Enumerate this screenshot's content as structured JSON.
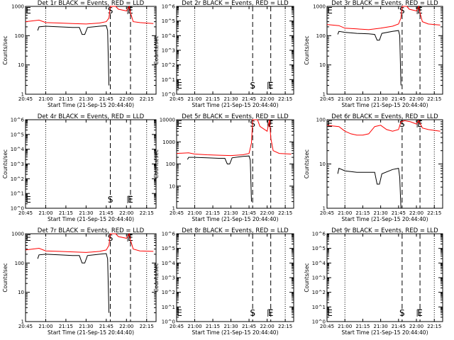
{
  "chart_data": [
    {
      "type": "line",
      "title": "Det 1r BLACK = Events, RED = LLD",
      "xlabel": "Start Time (21-Sep-15 20:44:40)",
      "ylabel": "Counts/sec",
      "yscale": "log",
      "ylim": [
        1,
        1000
      ],
      "xlim": [
        "20:45",
        "22:22"
      ],
      "xticks": [
        "20:45",
        "21:00",
        "21:15",
        "21:30",
        "21:45",
        "22:00",
        "22:15"
      ],
      "yticks": [
        "1",
        "10",
        "100",
        "1000"
      ],
      "markers": [
        "S",
        "E"
      ],
      "has_data": true,
      "series": [
        {
          "color": "#ff0000",
          "x": [
            "20:45",
            "20:55",
            "21:00",
            "21:10",
            "21:20",
            "21:30",
            "21:40",
            "21:45",
            "21:47",
            "21:48",
            "21:52",
            "21:54",
            "22:00",
            "22:02",
            "22:03",
            "22:05",
            "22:10",
            "22:20"
          ],
          "y": [
            300,
            340,
            280,
            270,
            260,
            250,
            270,
            300,
            400,
            1000,
            1000,
            800,
            700,
            1000,
            600,
            300,
            280,
            260
          ]
        },
        {
          "color": "#000000",
          "x": [
            "20:54",
            "20:55",
            "21:00",
            "21:10",
            "21:20",
            "21:25",
            "21:27",
            "21:29",
            "21:31",
            "21:40",
            "21:45",
            "21:46",
            "21:47"
          ],
          "y": [
            150,
            200,
            210,
            200,
            190,
            190,
            110,
            110,
            190,
            210,
            220,
            150,
            2
          ]
        }
      ]
    },
    {
      "type": "line",
      "title": "Det 2r BLACK = Events, RED = LLD",
      "xlabel": "Start Time (21-Sep-15 20:44:40)",
      "ylabel": "Counts/sec",
      "yscale": "log",
      "ylim": [
        1,
        1000000
      ],
      "xlim": [
        "20:45",
        "22:22"
      ],
      "xticks": [
        "20:45",
        "21:00",
        "21:15",
        "21:30",
        "21:45",
        "22:00",
        "22:15"
      ],
      "yticks": [
        "10^0",
        "10^1",
        "10^2",
        "10^3",
        "10^4",
        "10^5",
        "10^6"
      ],
      "markers": [
        "S",
        "E"
      ],
      "has_data": false,
      "series": []
    },
    {
      "type": "line",
      "title": "Det 3r BLACK = Events, RED = LLD",
      "xlabel": "Start Time (21-Sep-15 20:44:40)",
      "ylabel": "Counts/sec",
      "yscale": "log",
      "ylim": [
        1,
        1000
      ],
      "xlim": [
        "20:45",
        "22:22"
      ],
      "xticks": [
        "20:45",
        "21:00",
        "21:15",
        "21:30",
        "21:45",
        "22:00",
        "22:15"
      ],
      "yticks": [
        "1",
        "10",
        "100",
        "1000"
      ],
      "markers": [
        "S",
        "E"
      ],
      "has_data": true,
      "series": [
        {
          "color": "#ff0000",
          "x": [
            "20:45",
            "20:55",
            "21:00",
            "21:10",
            "21:20",
            "21:30",
            "21:40",
            "21:45",
            "21:47",
            "21:48",
            "21:52",
            "21:54",
            "22:00",
            "22:02",
            "22:03",
            "22:05",
            "22:10",
            "22:20"
          ],
          "y": [
            240,
            220,
            180,
            170,
            160,
            180,
            210,
            250,
            400,
            1000,
            1000,
            800,
            700,
            1000,
            600,
            300,
            250,
            230
          ]
        },
        {
          "color": "#000000",
          "x": [
            "20:54",
            "20:55",
            "21:00",
            "21:10",
            "21:20",
            "21:25",
            "21:27",
            "21:29",
            "21:31",
            "21:40",
            "21:45",
            "21:46",
            "21:47"
          ],
          "y": [
            110,
            140,
            130,
            120,
            115,
            110,
            70,
            70,
            120,
            140,
            150,
            100,
            2
          ]
        }
      ]
    },
    {
      "type": "line",
      "title": "Det 4r BLACK = Events, RED = LLD",
      "xlabel": "Start Time (21-Sep-15 20:44:40)",
      "ylabel": "Counts/sec",
      "yscale": "log",
      "ylim": [
        1,
        1000000
      ],
      "xlim": [
        "20:45",
        "22:22"
      ],
      "xticks": [
        "20:45",
        "21:00",
        "21:15",
        "21:30",
        "21:45",
        "22:00",
        "22:15"
      ],
      "yticks": [
        "10^0",
        "10^1",
        "10^2",
        "10^3",
        "10^4",
        "10^5",
        "10^6"
      ],
      "markers": [
        "S",
        "E"
      ],
      "has_data": false,
      "series": []
    },
    {
      "type": "line",
      "title": "Det 5r BLACK = Events, RED = LLD",
      "xlabel": "Start Time (21-Sep-15 20:44:40)",
      "ylabel": "Counts/sec",
      "yscale": "log",
      "ylim": [
        1,
        10000
      ],
      "xlim": [
        "20:45",
        "22:22"
      ],
      "xticks": [
        "20:45",
        "21:00",
        "21:15",
        "21:30",
        "21:45",
        "22:00",
        "22:15"
      ],
      "yticks": [
        "1",
        "10",
        "100",
        "1000",
        "10000"
      ],
      "markers": [
        "S",
        "E"
      ],
      "has_data": true,
      "series": [
        {
          "color": "#ff0000",
          "x": [
            "20:45",
            "20:55",
            "21:00",
            "21:10",
            "21:20",
            "21:30",
            "21:40",
            "21:45",
            "21:47",
            "21:48",
            "21:52",
            "21:54",
            "22:00",
            "22:02",
            "22:03",
            "22:05",
            "22:10",
            "22:20"
          ],
          "y": [
            300,
            320,
            280,
            260,
            250,
            240,
            260,
            300,
            900,
            10000,
            10000,
            5000,
            3000,
            10000,
            1500,
            400,
            300,
            280
          ]
        },
        {
          "color": "#000000",
          "x": [
            "20:54",
            "20:55",
            "21:00",
            "21:10",
            "21:20",
            "21:25",
            "21:27",
            "21:29",
            "21:31",
            "21:40",
            "21:45",
            "21:46",
            "21:47"
          ],
          "y": [
            160,
            200,
            200,
            190,
            180,
            180,
            100,
            100,
            190,
            220,
            230,
            150,
            2
          ]
        }
      ]
    },
    {
      "type": "line",
      "title": "Det 6r BLACK = Events, RED = LLD",
      "xlabel": "Start Time (21-Sep-15 20:44:40)",
      "ylabel": "Counts/sec",
      "yscale": "log",
      "ylim": [
        1,
        100
      ],
      "xlim": [
        "20:45",
        "22:22"
      ],
      "xticks": [
        "20:45",
        "21:00",
        "21:15",
        "21:30",
        "21:45",
        "22:00",
        "22:15"
      ],
      "yticks": [
        "1",
        "10",
        "100"
      ],
      "markers": [
        "S",
        "E"
      ],
      "has_data": true,
      "series": [
        {
          "color": "#ff0000",
          "x": [
            "20:45",
            "20:50",
            "20:55",
            "21:00",
            "21:05",
            "21:10",
            "21:15",
            "21:20",
            "21:25",
            "21:30",
            "21:35",
            "21:40",
            "21:45",
            "21:47",
            "21:50",
            "21:55",
            "22:00",
            "22:02",
            "22:05",
            "22:10",
            "22:20"
          ],
          "y": [
            75,
            72,
            70,
            55,
            48,
            45,
            45,
            48,
            70,
            75,
            60,
            55,
            60,
            90,
            95,
            90,
            80,
            95,
            65,
            60,
            55
          ]
        },
        {
          "color": "#000000",
          "x": [
            "20:54",
            "20:55",
            "21:00",
            "21:10",
            "21:20",
            "21:25",
            "21:27",
            "21:29",
            "21:31",
            "21:40",
            "21:45",
            "21:46",
            "21:47"
          ],
          "y": [
            6,
            8,
            7,
            6.5,
            6.5,
            6.5,
            3.5,
            3.5,
            6,
            7.5,
            8,
            5,
            1
          ]
        }
      ]
    },
    {
      "type": "line",
      "title": "Det 7r BLACK = Events, RED = LLD",
      "xlabel": "Start Time (21-Sep-15 20:44:40)",
      "ylabel": "Counts/sec",
      "yscale": "log",
      "ylim": [
        1,
        1000
      ],
      "xlim": [
        "20:45",
        "22:22"
      ],
      "xticks": [
        "20:45",
        "21:00",
        "21:15",
        "21:30",
        "21:45",
        "22:00",
        "22:15"
      ],
      "yticks": [
        "1",
        "10",
        "100",
        "1000"
      ],
      "markers": [
        "S",
        "E"
      ],
      "has_data": true,
      "series": [
        {
          "color": "#ff0000",
          "x": [
            "20:45",
            "20:55",
            "21:00",
            "21:10",
            "21:20",
            "21:30",
            "21:40",
            "21:45",
            "21:47",
            "21:48",
            "21:52",
            "21:54",
            "22:00",
            "22:02",
            "22:03",
            "22:05",
            "22:10",
            "22:20"
          ],
          "y": [
            280,
            320,
            260,
            250,
            240,
            230,
            250,
            280,
            400,
            1000,
            1000,
            800,
            700,
            1000,
            600,
            300,
            260,
            250
          ]
        },
        {
          "color": "#000000",
          "x": [
            "20:54",
            "20:55",
            "21:00",
            "21:10",
            "21:20",
            "21:25",
            "21:27",
            "21:29",
            "21:31",
            "21:40",
            "21:45",
            "21:46",
            "21:47"
          ],
          "y": [
            140,
            190,
            200,
            190,
            180,
            180,
            100,
            100,
            180,
            200,
            210,
            140,
            2
          ]
        }
      ]
    },
    {
      "type": "line",
      "title": "Det 8r BLACK = Events, RED = LLD",
      "xlabel": "Start Time (21-Sep-15 20:44:40)",
      "ylabel": "Counts/sec",
      "yscale": "log",
      "ylim": [
        1,
        1000000
      ],
      "xlim": [
        "20:45",
        "22:22"
      ],
      "xticks": [
        "20:45",
        "21:00",
        "21:15",
        "21:30",
        "21:45",
        "22:00",
        "22:15"
      ],
      "yticks": [
        "10^0",
        "10^1",
        "10^2",
        "10^3",
        "10^4",
        "10^5",
        "10^6"
      ],
      "markers": [
        "S",
        "E"
      ],
      "has_data": false,
      "series": []
    },
    {
      "type": "line",
      "title": "Det 9r BLACK = Events, RED = LLD",
      "xlabel": "Start Time (21-Sep-15 20:44:40)",
      "ylabel": "Counts/sec",
      "yscale": "log",
      "ylim": [
        1,
        1000000
      ],
      "xlim": [
        "20:45",
        "22:22"
      ],
      "xticks": [
        "20:45",
        "21:00",
        "21:15",
        "21:30",
        "21:45",
        "22:00",
        "22:15"
      ],
      "yticks": [
        "10^0",
        "10^1",
        "10^2",
        "10^3",
        "10^4",
        "10^5",
        "10^6"
      ],
      "markers": [
        "S",
        "E"
      ],
      "has_data": false,
      "series": []
    }
  ]
}
